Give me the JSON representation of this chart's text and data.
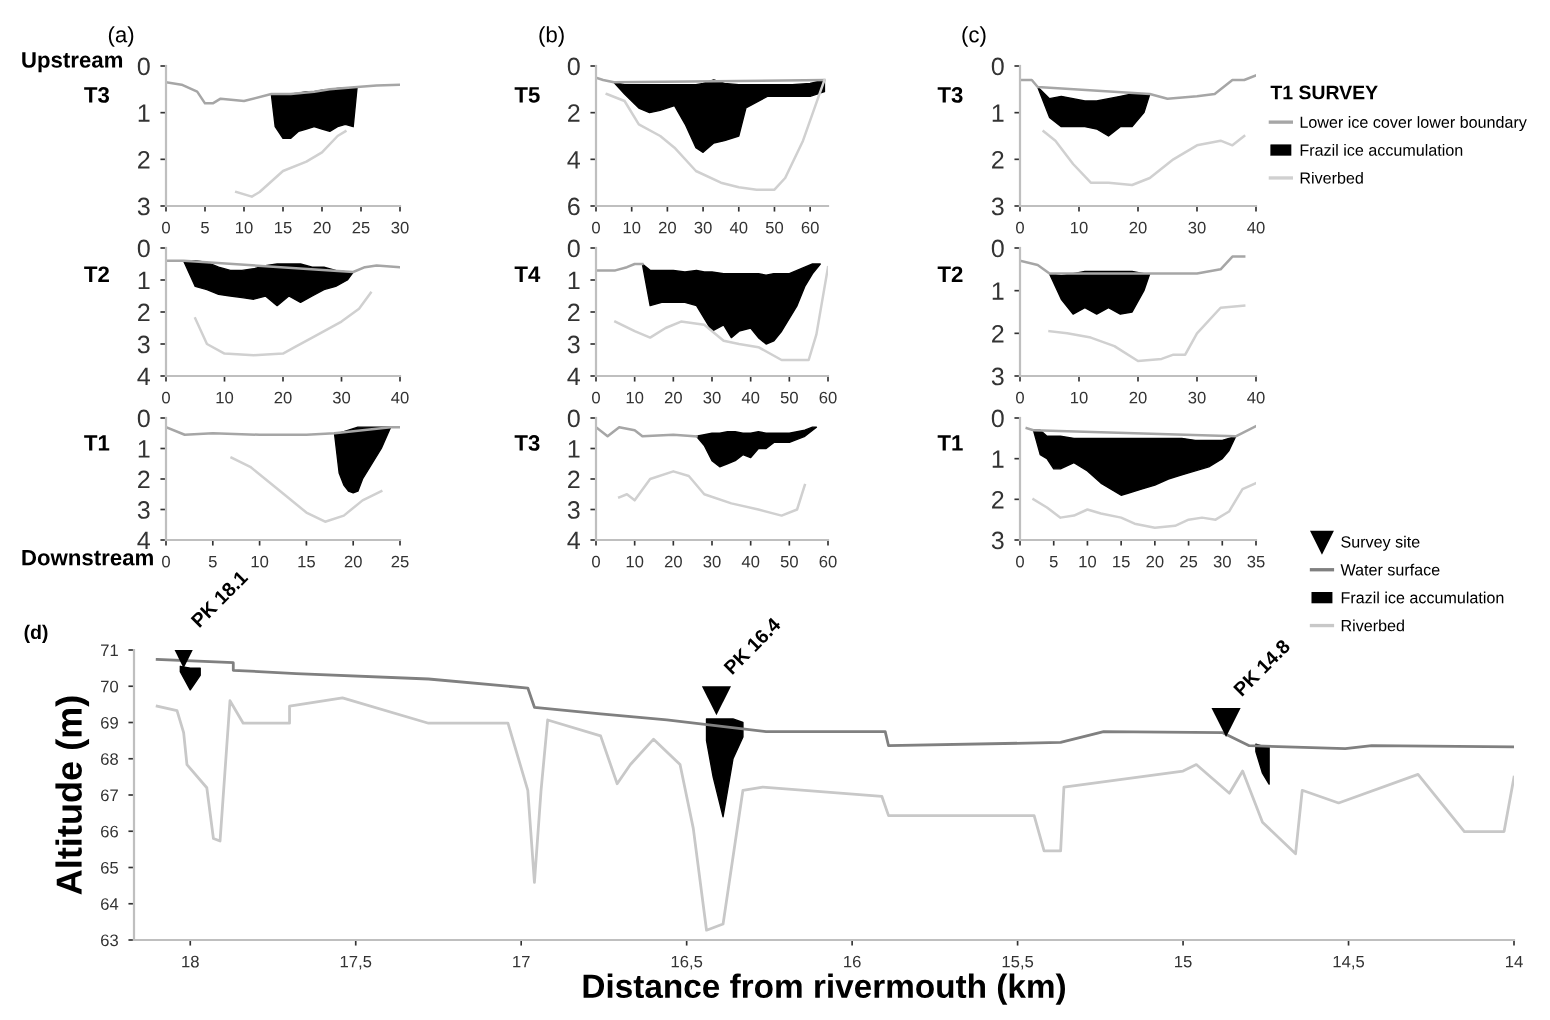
{
  "chart_data": [
    {
      "type": "line",
      "title": "(a)",
      "ylabel": "T3",
      "annotations": [
        "Upstream"
      ],
      "xlim": [
        0,
        30
      ],
      "xticks": [
        0,
        5,
        10,
        15,
        20,
        25,
        30
      ],
      "ylim": [
        3,
        0
      ],
      "yticks": [
        0,
        1,
        2,
        3
      ],
      "grid": false,
      "series": [
        {
          "color": "#a6a6a6",
          "x": [
            0,
            2,
            4,
            5,
            6,
            7,
            10,
            13.5,
            16,
            19,
            21,
            24.5,
            27,
            30
          ],
          "values": [
            0.35,
            0.4,
            0.55,
            0.8,
            0.8,
            0.7,
            0.75,
            0.6,
            0.6,
            0.55,
            0.5,
            0.45,
            0.42,
            0.4
          ]
        },
        {
          "type": "area",
          "color": "#000000",
          "x": [
            13.5,
            14,
            15,
            16,
            17,
            18,
            19,
            20,
            21,
            22,
            23,
            24,
            24.5,
            24,
            23,
            22,
            21,
            20,
            19,
            18,
            17,
            16,
            15,
            14
          ],
          "values": [
            0.6,
            1.3,
            1.55,
            1.55,
            1.4,
            1.35,
            1.3,
            1.35,
            1.4,
            1.3,
            1.25,
            1.3,
            0.45,
            0.46,
            0.47,
            0.48,
            0.5,
            0.52,
            0.55,
            0.55,
            0.58,
            0.6,
            0.6,
            0.6
          ]
        },
        {
          "color": "#d0d0d0",
          "x": [
            9,
            11,
            12,
            15,
            18,
            20,
            22,
            23
          ],
          "values": [
            2.7,
            2.8,
            2.7,
            2.25,
            2.05,
            1.85,
            1.5,
            1.4
          ]
        }
      ]
    },
    {
      "type": "line",
      "title": "(b)",
      "ylabel": "T5",
      "xlim": [
        0,
        65
      ],
      "xticks": [
        0,
        10,
        20,
        30,
        40,
        50,
        60
      ],
      "ylim": [
        6,
        0
      ],
      "yticks": [
        0,
        2,
        4,
        6
      ],
      "grid": false,
      "series": [
        {
          "color": "#a6a6a6",
          "x": [
            0,
            2,
            5,
            64
          ],
          "values": [
            0.5,
            0.6,
            0.7,
            0.6
          ]
        },
        {
          "type": "area",
          "color": "#000000",
          "x": [
            5,
            8,
            12,
            15,
            18,
            22,
            25,
            28,
            30,
            33,
            36,
            40,
            42,
            48,
            55,
            60,
            64,
            64,
            60,
            55,
            48,
            42,
            40,
            36,
            33,
            30,
            28,
            25,
            22,
            18,
            15,
            12,
            8
          ],
          "values": [
            0.7,
            1.2,
            1.8,
            2.0,
            1.9,
            1.7,
            2.5,
            3.5,
            3.7,
            3.3,
            3.2,
            3.0,
            1.8,
            1.3,
            1.3,
            1.3,
            1.1,
            0.6,
            0.75,
            0.8,
            0.8,
            0.8,
            0.8,
            0.75,
            0.6,
            0.75,
            0.8,
            0.8,
            0.8,
            0.8,
            0.8,
            0.8,
            0.8
          ]
        },
        {
          "color": "#d0d0d0",
          "x": [
            3,
            8,
            12,
            18,
            22,
            28,
            35,
            40,
            45,
            50,
            53,
            58,
            64
          ],
          "values": [
            1.2,
            1.5,
            2.5,
            3.0,
            3.5,
            4.5,
            5.0,
            5.2,
            5.3,
            5.3,
            4.8,
            3.2,
            0.6
          ]
        }
      ]
    },
    {
      "type": "line",
      "title": "(c)",
      "ylabel": "T3",
      "legend_title": "T1 SURVEY",
      "legend": "right",
      "xlim": [
        0,
        40
      ],
      "xticks": [
        0,
        10,
        20,
        30,
        40
      ],
      "ylim": [
        3,
        0
      ],
      "yticks": [
        0,
        1,
        2,
        3
      ],
      "grid": false,
      "series": [
        {
          "name": "Lower ice cover lower boundary",
          "color": "#a6a6a6",
          "x": [
            0,
            2,
            3,
            22,
            25,
            30,
            33,
            36,
            38,
            40
          ],
          "values": [
            0.3,
            0.3,
            0.45,
            0.6,
            0.7,
            0.65,
            0.6,
            0.3,
            0.3,
            0.2
          ]
        },
        {
          "type": "area",
          "name": "Frazil ice accumulation",
          "color": "#000000",
          "x": [
            3,
            5,
            7,
            9,
            11,
            13,
            15,
            17,
            19,
            21,
            22,
            21,
            19,
            17,
            15,
            13,
            11,
            9,
            7,
            5
          ],
          "values": [
            0.45,
            1.1,
            1.3,
            1.3,
            1.3,
            1.35,
            1.5,
            1.3,
            1.3,
            1.0,
            0.6,
            0.6,
            0.6,
            0.65,
            0.7,
            0.75,
            0.75,
            0.7,
            0.65,
            0.7
          ]
        },
        {
          "name": "Riverbed",
          "color": "#d0d0d0",
          "x": [
            4,
            6,
            9,
            12,
            15,
            19,
            22,
            26,
            30,
            34,
            36,
            38
          ],
          "values": [
            1.4,
            1.6,
            2.1,
            2.5,
            2.5,
            2.55,
            2.4,
            2.0,
            1.7,
            1.6,
            1.7,
            1.5
          ]
        }
      ]
    },
    {
      "type": "line",
      "ylabel": "T2",
      "xlim": [
        0,
        40
      ],
      "xticks": [
        0,
        10,
        20,
        30,
        40
      ],
      "ylim": [
        4,
        0
      ],
      "yticks": [
        0,
        1,
        2,
        3,
        4
      ],
      "grid": false,
      "series": [
        {
          "color": "#a6a6a6",
          "x": [
            0,
            3,
            32,
            34,
            36,
            40
          ],
          "values": [
            0.4,
            0.4,
            0.75,
            0.6,
            0.55,
            0.6
          ]
        },
        {
          "type": "area",
          "color": "#000000",
          "x": [
            3,
            5,
            7,
            9,
            11,
            13,
            15,
            17,
            19,
            21,
            23,
            25,
            27,
            29,
            31,
            32,
            31,
            29,
            27,
            25,
            23,
            21,
            19,
            17,
            15,
            13,
            11,
            9,
            7,
            5
          ],
          "values": [
            0.4,
            1.2,
            1.3,
            1.45,
            1.5,
            1.55,
            1.6,
            1.5,
            1.8,
            1.5,
            1.7,
            1.5,
            1.3,
            1.2,
            1.0,
            0.75,
            0.75,
            0.7,
            0.6,
            0.6,
            0.5,
            0.5,
            0.5,
            0.55,
            0.65,
            0.7,
            0.7,
            0.6,
            0.45,
            0.4
          ]
        },
        {
          "color": "#d0d0d0",
          "x": [
            5,
            7,
            10,
            15,
            20,
            22,
            25,
            30,
            33,
            35
          ],
          "values": [
            2.2,
            3.0,
            3.3,
            3.35,
            3.3,
            3.1,
            2.8,
            2.3,
            1.9,
            1.4
          ]
        }
      ]
    },
    {
      "type": "line",
      "ylabel": "T4",
      "xlim": [
        0,
        60
      ],
      "xticks": [
        0,
        10,
        20,
        30,
        40,
        50,
        60
      ],
      "ylim": [
        4,
        0
      ],
      "yticks": [
        0,
        1,
        2,
        3,
        4
      ],
      "grid": false,
      "series": [
        {
          "color": "#a6a6a6",
          "x": [
            0,
            5,
            8,
            10,
            12
          ],
          "values": [
            0.7,
            0.7,
            0.6,
            0.5,
            0.5
          ]
        },
        {
          "type": "area",
          "color": "#000000",
          "x": [
            12,
            14,
            17,
            20,
            23,
            26,
            28,
            30,
            33,
            35,
            37,
            40,
            42,
            44,
            46,
            48,
            50,
            52,
            54,
            56,
            58,
            56,
            54,
            52,
            50,
            48,
            46,
            44,
            42,
            40,
            37,
            35,
            33,
            30,
            28,
            26,
            23,
            20,
            17,
            14
          ],
          "values": [
            0.5,
            1.8,
            1.7,
            1.7,
            1.7,
            1.8,
            2.2,
            2.6,
            2.4,
            2.8,
            2.6,
            2.5,
            2.8,
            3.0,
            2.9,
            2.6,
            2.2,
            1.8,
            1.2,
            0.8,
            0.5,
            0.5,
            0.6,
            0.7,
            0.8,
            0.8,
            0.8,
            0.85,
            0.8,
            0.8,
            0.8,
            0.8,
            0.8,
            0.75,
            0.75,
            0.7,
            0.75,
            0.7,
            0.7,
            0.7
          ]
        },
        {
          "color": "#d0d0d0",
          "x": [
            5,
            10,
            14,
            18,
            22,
            28,
            33,
            37,
            42,
            48,
            55,
            57,
            60
          ],
          "values": [
            2.3,
            2.6,
            2.8,
            2.5,
            2.3,
            2.4,
            2.9,
            3.0,
            3.1,
            3.5,
            3.5,
            2.7,
            0.6
          ]
        }
      ]
    },
    {
      "type": "line",
      "ylabel": "T2",
      "xlim": [
        0,
        40
      ],
      "xticks": [
        0,
        10,
        20,
        30,
        40
      ],
      "ylim": [
        3,
        0
      ],
      "yticks": [
        0,
        1,
        2,
        3
      ],
      "grid": false,
      "series": [
        {
          "color": "#a6a6a6",
          "x": [
            0,
            3,
            5,
            22,
            25,
            30,
            34,
            36,
            38
          ],
          "values": [
            0.3,
            0.4,
            0.6,
            0.6,
            0.6,
            0.6,
            0.5,
            0.2,
            0.2
          ]
        },
        {
          "type": "area",
          "color": "#000000",
          "x": [
            5,
            7,
            9,
            11,
            13,
            15,
            17,
            19,
            21,
            22,
            21,
            19,
            17,
            15,
            13,
            11,
            9,
            7
          ],
          "values": [
            0.6,
            1.2,
            1.55,
            1.4,
            1.55,
            1.4,
            1.55,
            1.5,
            1.0,
            0.6,
            0.6,
            0.55,
            0.55,
            0.55,
            0.55,
            0.55,
            0.6,
            0.65
          ]
        },
        {
          "color": "#d0d0d0",
          "x": [
            5,
            8,
            12,
            16,
            20,
            24,
            26,
            28,
            30,
            34,
            38
          ],
          "values": [
            1.95,
            2.0,
            2.1,
            2.3,
            2.65,
            2.6,
            2.5,
            2.5,
            2.0,
            1.4,
            1.35
          ]
        }
      ]
    },
    {
      "type": "line",
      "ylabel": "T1",
      "annotations": [
        "Downstream"
      ],
      "xlim": [
        0,
        25
      ],
      "xticks": [
        0,
        5,
        10,
        15,
        20,
        25
      ],
      "ylim": [
        4,
        0
      ],
      "yticks": [
        0,
        1,
        2,
        3,
        4
      ],
      "grid": false,
      "series": [
        {
          "color": "#a6a6a6",
          "x": [
            0,
            2,
            5,
            10,
            15,
            18,
            24,
            25
          ],
          "values": [
            0.3,
            0.55,
            0.5,
            0.55,
            0.55,
            0.5,
            0.3,
            0.3
          ]
        },
        {
          "type": "area",
          "color": "#000000",
          "x": [
            18,
            18.5,
            19,
            19.5,
            20,
            20.5,
            21,
            22,
            23,
            24,
            23,
            22,
            21,
            20.5,
            20,
            19.5,
            19,
            18.5
          ],
          "values": [
            0.5,
            1.8,
            2.2,
            2.4,
            2.45,
            2.4,
            2.0,
            1.5,
            1.0,
            0.3,
            0.3,
            0.3,
            0.3,
            0.3,
            0.35,
            0.4,
            0.45,
            0.5
          ]
        },
        {
          "color": "#d0d0d0",
          "x": [
            7,
            9,
            11,
            13,
            15,
            17,
            19,
            21,
            23
          ],
          "values": [
            1.3,
            1.6,
            2.1,
            2.6,
            3.1,
            3.4,
            3.2,
            2.7,
            2.4
          ]
        }
      ]
    },
    {
      "type": "line",
      "ylabel": "T3",
      "xlim": [
        0,
        60
      ],
      "xticks": [
        0,
        10,
        20,
        30,
        40,
        50,
        60
      ],
      "ylim": [
        4,
        0
      ],
      "yticks": [
        0,
        1,
        2,
        3,
        4
      ],
      "grid": false,
      "series": [
        {
          "color": "#a6a6a6",
          "x": [
            0,
            3,
            6,
            10,
            12,
            20,
            26
          ],
          "values": [
            0.3,
            0.6,
            0.3,
            0.4,
            0.6,
            0.55,
            0.6
          ]
        },
        {
          "type": "area",
          "color": "#000000",
          "x": [
            26,
            28,
            30,
            32,
            34,
            36,
            38,
            40,
            42,
            44,
            46,
            48,
            50,
            52,
            54,
            56,
            57,
            56,
            54,
            52,
            50,
            48,
            46,
            44,
            42,
            40,
            38,
            36,
            34,
            32,
            30,
            28
          ],
          "values": [
            0.6,
            0.9,
            1.4,
            1.6,
            1.5,
            1.4,
            1.2,
            1.3,
            1.0,
            1.0,
            0.8,
            0.8,
            0.8,
            0.7,
            0.6,
            0.4,
            0.3,
            0.3,
            0.4,
            0.45,
            0.5,
            0.5,
            0.5,
            0.5,
            0.45,
            0.5,
            0.5,
            0.45,
            0.45,
            0.5,
            0.5,
            0.55
          ]
        },
        {
          "color": "#d0d0d0",
          "x": [
            6,
            8,
            10,
            14,
            20,
            24,
            28,
            35,
            42,
            48,
            52,
            54
          ],
          "values": [
            2.6,
            2.5,
            2.7,
            2.0,
            1.75,
            1.9,
            2.5,
            2.8,
            3.0,
            3.2,
            3.0,
            2.2
          ]
        }
      ]
    },
    {
      "type": "line",
      "ylabel": "T1",
      "xlim": [
        0,
        35
      ],
      "xticks": [
        0,
        5,
        10,
        15,
        20,
        25,
        30,
        35
      ],
      "ylim": [
        3,
        0
      ],
      "yticks": [
        0,
        1,
        2,
        3
      ],
      "grid": false,
      "series": [
        {
          "color": "#a6a6a6",
          "x": [
            1,
            2,
            32,
            35
          ],
          "values": [
            0.25,
            0.3,
            0.45,
            0.2
          ]
        },
        {
          "type": "area",
          "color": "#000000",
          "x": [
            2,
            3,
            4,
            5,
            6,
            8,
            10,
            12,
            14,
            15,
            16,
            18,
            20,
            22,
            24,
            26,
            28,
            30,
            31,
            32,
            31,
            30,
            28,
            26,
            24,
            22,
            20,
            18,
            16,
            15,
            14,
            12,
            10,
            8,
            6,
            5,
            4,
            3
          ],
          "values": [
            0.3,
            0.9,
            1.0,
            1.25,
            1.25,
            1.1,
            1.3,
            1.6,
            1.8,
            1.9,
            1.85,
            1.75,
            1.65,
            1.5,
            1.4,
            1.3,
            1.2,
            1.0,
            0.8,
            0.45,
            0.5,
            0.55,
            0.55,
            0.55,
            0.5,
            0.5,
            0.5,
            0.5,
            0.5,
            0.5,
            0.5,
            0.5,
            0.5,
            0.5,
            0.45,
            0.45,
            0.45,
            0.3
          ]
        },
        {
          "color": "#d0d0d0",
          "x": [
            2,
            4,
            6,
            8,
            10,
            12,
            15,
            17,
            20,
            23,
            25,
            27,
            29,
            31,
            33,
            35
          ],
          "values": [
            2.0,
            2.2,
            2.45,
            2.4,
            2.25,
            2.35,
            2.45,
            2.6,
            2.7,
            2.65,
            2.5,
            2.45,
            2.5,
            2.3,
            1.75,
            1.6
          ]
        }
      ]
    },
    {
      "type": "line",
      "title": "(d)",
      "xlabel": "Distance from rivermouth (km)",
      "ylabel": "Altitude (m)",
      "legend": "top right",
      "grid": false,
      "annotations": [
        {
          "text": "PK 18.1",
          "x": 18.02,
          "y": 70.9
        },
        {
          "text": "PK 16.4",
          "x": 16.41,
          "y": 69.6
        },
        {
          "text": "PK 14.8",
          "x": 14.87,
          "y": 69.0
        }
      ],
      "xlim": [
        18.17,
        14
      ],
      "xticks": [
        {
          "value": 18,
          "label": "18"
        },
        {
          "value": 17.5,
          "label": "17,5"
        },
        {
          "value": 17,
          "label": "17"
        },
        {
          "value": 16.5,
          "label": "16,5"
        },
        {
          "value": 16,
          "label": "16"
        },
        {
          "value": 15.5,
          "label": "15,5"
        },
        {
          "value": 15,
          "label": "15"
        },
        {
          "value": 14.5,
          "label": "14,5"
        },
        {
          "value": 14,
          "label": "14"
        }
      ],
      "ylim": [
        63,
        71
      ],
      "yticks": [
        63,
        64,
        65,
        66,
        67,
        68,
        69,
        70,
        71
      ],
      "series": [
        {
          "type": "scatter",
          "name": "Survey site",
          "marker": "triangle",
          "color": "#000000",
          "x": [
            18.02,
            16.41,
            14.87
          ],
          "values": [
            70.9,
            69.6,
            69.0
          ]
        },
        {
          "name": "Water surface",
          "color": "#808080",
          "x": [
            18.1,
            17.87,
            17.87,
            17.68,
            17.28,
            16.98,
            16.96,
            16.76,
            16.56,
            16.26,
            15.9,
            15.89,
            15.37,
            15.24,
            14.88,
            14.8,
            14.51,
            14.43,
            14.0
          ],
          "values": [
            70.74,
            70.65,
            70.44,
            70.35,
            70.2,
            69.95,
            69.42,
            69.24,
            69.07,
            68.75,
            68.75,
            68.36,
            68.45,
            68.75,
            68.72,
            68.36,
            68.28,
            68.36,
            68.33
          ]
        },
        {
          "type": "area",
          "name": "Frazil ice accumulation",
          "color": "#000000",
          "x": [
            18.03,
            18.0,
            17.97,
            17.97,
            18.0,
            18.03
          ],
          "values": [
            70.55,
            70.5,
            70.5,
            70.3,
            69.9,
            70.4
          ]
        },
        {
          "type": "area",
          "color": "#000000",
          "x": [
            16.44,
            16.42,
            16.39,
            16.36,
            16.33,
            16.33,
            16.36,
            16.39,
            16.42,
            16.44
          ],
          "values": [
            69.1,
            69.1,
            69.1,
            69.1,
            69.0,
            68.6,
            68.0,
            66.4,
            67.5,
            68.5
          ]
        },
        {
          "type": "area",
          "color": "#000000",
          "x": [
            14.78,
            14.76,
            14.74,
            14.74,
            14.76,
            14.78
          ],
          "values": [
            68.4,
            68.35,
            68.35,
            67.3,
            67.6,
            68.2
          ]
        },
        {
          "name": "Riverbed",
          "color": "#c8c8c8",
          "x": [
            18.1,
            18.04,
            18.02,
            18.01,
            17.95,
            17.93,
            17.91,
            17.88,
            17.84,
            17.7,
            17.7,
            17.54,
            17.28,
            17.04,
            16.98,
            16.96,
            16.94,
            16.92,
            16.76,
            16.71,
            16.67,
            16.6,
            16.52,
            16.48,
            16.44,
            16.39,
            16.33,
            16.27,
            15.91,
            15.89,
            15.45,
            15.42,
            15.37,
            15.36,
            15.0,
            14.96,
            14.86,
            14.82,
            14.76,
            14.66,
            14.64,
            14.53,
            14.29,
            14.15,
            14.03,
            14.0
          ],
          "values": [
            69.45,
            69.33,
            68.72,
            67.84,
            67.2,
            65.8,
            65.73,
            69.6,
            68.98,
            68.98,
            69.45,
            69.68,
            68.98,
            68.98,
            67.13,
            64.59,
            67.13,
            69.07,
            68.63,
            67.31,
            67.84,
            68.54,
            67.84,
            66.08,
            63.27,
            63.44,
            67.13,
            67.22,
            66.96,
            66.43,
            66.43,
            65.46,
            65.46,
            67.22,
            67.66,
            67.84,
            67.05,
            67.66,
            66.25,
            65.38,
            67.13,
            66.78,
            67.57,
            65.99,
            65.99,
            67.49
          ]
        }
      ]
    }
  ]
}
